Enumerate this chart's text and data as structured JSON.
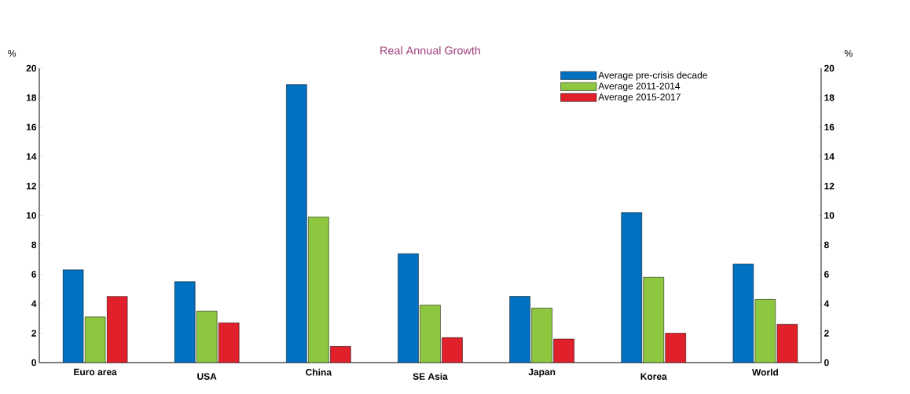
{
  "chart_data": {
    "type": "bar",
    "title": "Real Annual Growth",
    "ylabel": "%",
    "y2label": "%",
    "categories": [
      "Euro area",
      "USA",
      "China",
      "SE Asia",
      "Japan",
      "Korea",
      "World"
    ],
    "series": [
      {
        "name": "Average pre-crisis decade",
        "color": "#0070c0",
        "values": [
          6.3,
          5.5,
          18.9,
          7.4,
          4.5,
          10.2,
          6.7
        ]
      },
      {
        "name": "Average 2011-2014",
        "color": "#8dc63f",
        "values": [
          3.1,
          3.5,
          9.9,
          3.9,
          3.7,
          5.8,
          4.3
        ]
      },
      {
        "name": "Average 2015-2017",
        "color": "#e0202a",
        "values": [
          4.5,
          2.7,
          1.1,
          1.7,
          1.6,
          2.0,
          2.6
        ]
      }
    ],
    "ylim": [
      0,
      20
    ],
    "yticks": [
      0,
      2,
      4,
      6,
      8,
      10,
      12,
      14,
      16,
      18,
      20
    ],
    "y2lim": [
      0,
      20
    ],
    "y2ticks": [
      0,
      2,
      4,
      6,
      8,
      10,
      12,
      14,
      16,
      18,
      20
    ],
    "legend": "top right",
    "grid": false
  }
}
